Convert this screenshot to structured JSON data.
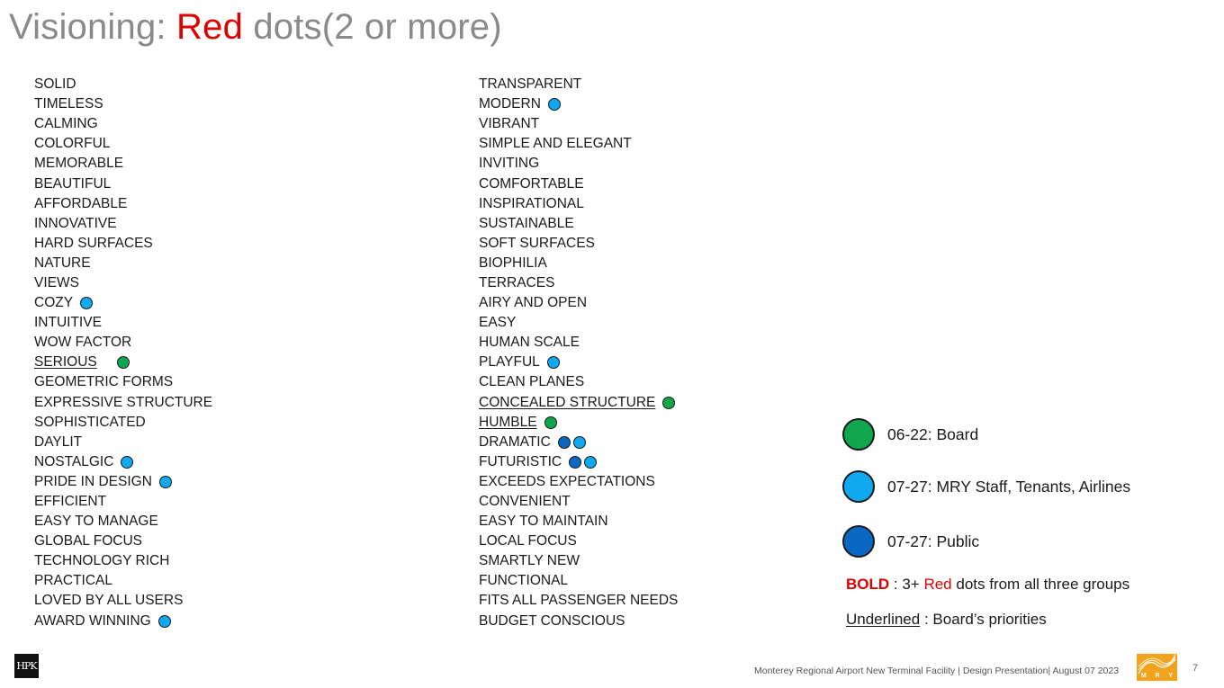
{
  "title": {
    "prefix": "Visioning: ",
    "highlight": "Red",
    "suffix": " dots(2 or more)"
  },
  "colors": {
    "board": "#0fa64e",
    "staff": "#10a8ef",
    "public": "#0a68c2",
    "accent_red": "#e00000"
  },
  "left_column": [
    {
      "label": "SOLID",
      "dots": []
    },
    {
      "label": "TIMELESS",
      "dots": []
    },
    {
      "label": "CALMING",
      "dots": []
    },
    {
      "label": "COLORFUL",
      "dots": []
    },
    {
      "label": "MEMORABLE",
      "dots": []
    },
    {
      "label": "BEAUTIFUL",
      "dots": []
    },
    {
      "label": "AFFORDABLE",
      "dots": []
    },
    {
      "label": "INNOVATIVE",
      "dots": []
    },
    {
      "label": "HARD SURFACES",
      "dots": []
    },
    {
      "label": "NATURE",
      "dots": []
    },
    {
      "label": "VIEWS",
      "dots": []
    },
    {
      "label": "COZY",
      "dots": [
        "staff"
      ]
    },
    {
      "label": "INTUITIVE",
      "dots": []
    },
    {
      "label": "WOW FACTOR",
      "dots": []
    },
    {
      "label": "SERIOUS",
      "dots": [
        "board"
      ],
      "underline": true
    },
    {
      "label": "GEOMETRIC FORMS",
      "dots": []
    },
    {
      "label": "EXPRESSIVE STRUCTURE",
      "dots": []
    },
    {
      "label": "SOPHISTICATED",
      "dots": []
    },
    {
      "label": "DAYLIT",
      "dots": []
    },
    {
      "label": "NOSTALGIC",
      "dots": [
        "staff"
      ]
    },
    {
      "label": "PRIDE IN DESIGN",
      "dots": [
        "staff"
      ]
    },
    {
      "label": "EFFICIENT",
      "dots": []
    },
    {
      "label": "EASY TO MANAGE",
      "dots": []
    },
    {
      "label": "GLOBAL FOCUS",
      "dots": []
    },
    {
      "label": "TECHNOLOGY RICH",
      "dots": []
    },
    {
      "label": "PRACTICAL",
      "dots": []
    },
    {
      "label": "LOVED BY ALL USERS",
      "dots": []
    },
    {
      "label": "AWARD WINNING",
      "dots": [
        "staff"
      ]
    }
  ],
  "right_column": [
    {
      "label": "TRANSPARENT",
      "dots": []
    },
    {
      "label": "MODERN",
      "dots": [
        "staff"
      ]
    },
    {
      "label": "VIBRANT",
      "dots": []
    },
    {
      "label": "SIMPLE AND ELEGANT",
      "dots": []
    },
    {
      "label": "INVITING",
      "dots": []
    },
    {
      "label": "COMFORTABLE",
      "dots": []
    },
    {
      "label": "INSPIRATIONAL",
      "dots": []
    },
    {
      "label": "SUSTAINABLE",
      "dots": []
    },
    {
      "label": "SOFT SURFACES",
      "dots": []
    },
    {
      "label": "BIOPHILIA",
      "dots": []
    },
    {
      "label": "TERRACES",
      "dots": []
    },
    {
      "label": "AIRY AND OPEN",
      "dots": []
    },
    {
      "label": "EASY",
      "dots": []
    },
    {
      "label": "HUMAN SCALE",
      "dots": []
    },
    {
      "label": "PLAYFUL",
      "dots": [
        "staff"
      ]
    },
    {
      "label": "CLEAN PLANES",
      "dots": []
    },
    {
      "label": "CONCEALED STRUCTURE",
      "dots": [
        "board"
      ],
      "underline": true
    },
    {
      "label": "HUMBLE",
      "dots": [
        "board"
      ],
      "underline": true
    },
    {
      "label": "DRAMATIC",
      "dots": [
        "public",
        "staff"
      ]
    },
    {
      "label": "FUTURISTIC",
      "dots": [
        "public",
        "staff"
      ]
    },
    {
      "label": "EXCEEDS EXPECTATIONS",
      "dots": []
    },
    {
      "label": "CONVENIENT",
      "dots": []
    },
    {
      "label": "EASY TO MAINTAIN",
      "dots": []
    },
    {
      "label": "LOCAL FOCUS",
      "dots": []
    },
    {
      "label": "SMARTLY  NEW",
      "dots": []
    },
    {
      "label": "FUNCTIONAL",
      "dots": []
    },
    {
      "label": "FITS ALL PASSENGER NEEDS",
      "dots": []
    },
    {
      "label": "BUDGET CONSCIOUS",
      "dots": []
    }
  ],
  "legend": {
    "board": "06-22: Board",
    "staff": "07-27: MRY Staff, Tenants, Airlines",
    "public": "07-27: Public"
  },
  "notes": {
    "bold_word": "BOLD",
    "bold_sep": " : 3+ ",
    "bold_red": "Red",
    "bold_rest": " dots from all three groups",
    "underline_word": "Underlined",
    "underline_rest": " : Board’s priorities"
  },
  "footer": {
    "text": "Monterey Regional Airport New Terminal Facility | Design Presentation| August 07 2023",
    "left_logo": "HPK",
    "right_logo_letters": [
      "M",
      "R",
      "Y"
    ],
    "page_number": "7"
  }
}
